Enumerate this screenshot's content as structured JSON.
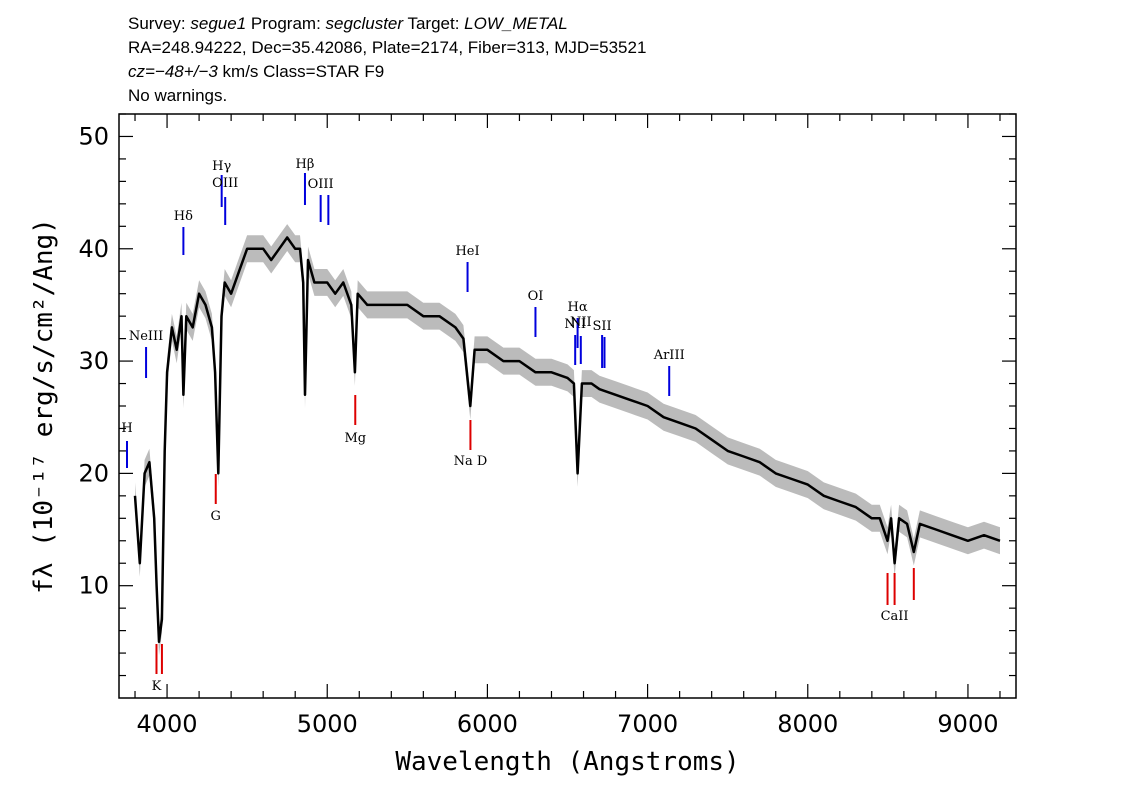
{
  "header": {
    "line1": {
      "survey_label": "Survey:",
      "survey": "segue1",
      "program_label": "Program:",
      "program": "segcluster",
      "target_label": "Target:",
      "target": "LOW_METAL"
    },
    "line2": "RA=248.94222, Dec=35.42086, Plate=2174, Fiber=313, MJD=53521",
    "line3": {
      "cz": "cz=−48+/−3",
      "rest": " km/s Class=STAR F9"
    },
    "line4": "No warnings."
  },
  "colors": {
    "emission": "#0000dd",
    "absorption": "#dd0000",
    "flux": "#000000",
    "error": "#bbbbbb"
  },
  "chart_data": {
    "type": "line",
    "xlabel": "Wavelength (Angstroms)",
    "ylabel": "fλ (10⁻¹⁷ erg/s/cm²/Ang)",
    "xlim": [
      3700,
      9300
    ],
    "ylim": [
      0,
      52
    ],
    "xticks": [
      4000,
      5000,
      6000,
      7000,
      8000,
      9000
    ],
    "yticks": [
      10,
      20,
      30,
      40,
      50
    ],
    "series": [
      {
        "x": [
          3800,
          3830,
          3860,
          3890,
          3920,
          3935,
          3950,
          3968,
          3985,
          4000,
          4030,
          4060,
          4090,
          4102,
          4120,
          4160,
          4200,
          4240,
          4280,
          4300,
          4320,
          4340,
          4360,
          4400,
          4450,
          4500,
          4550,
          4600,
          4650,
          4700,
          4750,
          4800,
          4830,
          4850,
          4861,
          4880,
          4920,
          4960,
          5000,
          5050,
          5100,
          5150,
          5173,
          5190,
          5250,
          5300,
          5350,
          5400,
          5500,
          5600,
          5700,
          5800,
          5850,
          5893,
          5920,
          6000,
          6100,
          6200,
          6300,
          6400,
          6500,
          6540,
          6563,
          6590,
          6650,
          6700,
          6800,
          6900,
          7000,
          7100,
          7200,
          7300,
          7400,
          7500,
          7600,
          7700,
          7800,
          7900,
          8000,
          8100,
          8200,
          8300,
          8400,
          8450,
          8498,
          8520,
          8542,
          8570,
          8620,
          8662,
          8700,
          8800,
          8900,
          9000,
          9100,
          9200
        ],
        "values": [
          18,
          12,
          20,
          21,
          16,
          10,
          5,
          7,
          22,
          29,
          33,
          31,
          34,
          27,
          34,
          33,
          36,
          35,
          33,
          29,
          20,
          34,
          37,
          36,
          38,
          40,
          40,
          40,
          39,
          40,
          41,
          40,
          40,
          37,
          27,
          39,
          37,
          37,
          37,
          36,
          37,
          35,
          29,
          36,
          35,
          35,
          35,
          35,
          35,
          34,
          34,
          33,
          32,
          26,
          31,
          31,
          30,
          30,
          29,
          29,
          28.5,
          28,
          20,
          28,
          28,
          27.5,
          27,
          26.5,
          26,
          25,
          24.5,
          24,
          23,
          22,
          21.5,
          21,
          20,
          19.5,
          19,
          18,
          17.5,
          17,
          16,
          16,
          14,
          16,
          12,
          16,
          15.5,
          13,
          15.5,
          15,
          14.5,
          14,
          14.5,
          14
        ]
      }
    ],
    "lines": [
      {
        "name": "H",
        "wave": 3750,
        "kind": "emission"
      },
      {
        "name": "NeIII",
        "wave": 3869,
        "kind": "emission"
      },
      {
        "name": "Hδ",
        "wave": 4102,
        "kind": "emission"
      },
      {
        "name": "Hγ",
        "wave": 4341,
        "kind": "emission"
      },
      {
        "name": "OIII",
        "wave": 4363,
        "kind": "emission"
      },
      {
        "name": "Hβ",
        "wave": 4861,
        "kind": "emission"
      },
      {
        "name": "OIII",
        "wave": 4959,
        "kind": "emission"
      },
      {
        "name": "",
        "wave": 5007,
        "kind": "emission"
      },
      {
        "name": "HeI",
        "wave": 5876,
        "kind": "emission"
      },
      {
        "name": "OI",
        "wave": 6300,
        "kind": "emission"
      },
      {
        "name": "NII",
        "wave": 6548,
        "kind": "emission"
      },
      {
        "name": "Hα",
        "wave": 6563,
        "kind": "emission"
      },
      {
        "name": "NII",
        "wave": 6583,
        "kind": "emission"
      },
      {
        "name": "SII",
        "wave": 6716,
        "kind": "emission"
      },
      {
        "name": "",
        "wave": 6731,
        "kind": "emission"
      },
      {
        "name": "ArIII",
        "wave": 7135,
        "kind": "emission"
      },
      {
        "name": "K",
        "wave": 3934,
        "kind": "absorption"
      },
      {
        "name": "H",
        "wave": 3968,
        "kind": "absorption"
      },
      {
        "name": "G",
        "wave": 4304,
        "kind": "absorption"
      },
      {
        "name": "Mg",
        "wave": 5175,
        "kind": "absorption"
      },
      {
        "name": "Na D",
        "wave": 5894,
        "kind": "absorption"
      },
      {
        "name": "",
        "wave": 8498,
        "kind": "absorption"
      },
      {
        "name": "CaII",
        "wave": 8542,
        "kind": "absorption"
      },
      {
        "name": "",
        "wave": 8662,
        "kind": "absorption"
      }
    ]
  }
}
